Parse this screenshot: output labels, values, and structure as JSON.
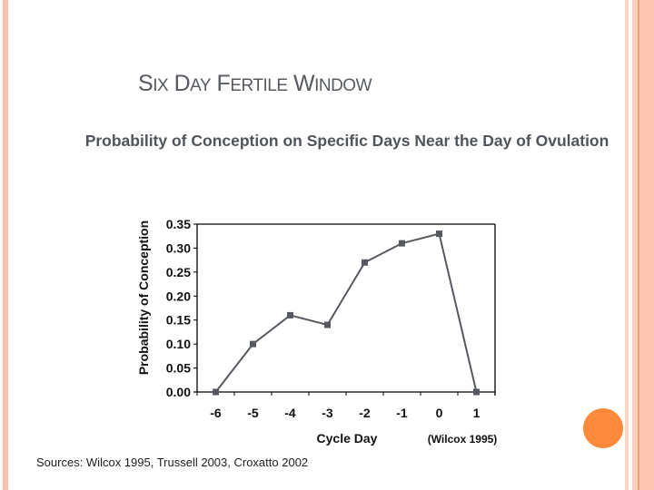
{
  "slide": {
    "title_parts": [
      {
        "cap": "S",
        "rest": "IX"
      },
      {
        "cap": "D",
        "rest": "AY"
      },
      {
        "cap": "F",
        "rest": "ERTILE"
      },
      {
        "cap": "W",
        "rest": "INDOW"
      }
    ],
    "subtitle": "Probability of Conception on Specific Days Near the Day of Ovulation",
    "sources": "Sources: Wilcox 1995, Trussell 2003, Croxatto 2002",
    "citation": "(Wilcox 1995)",
    "colors": {
      "border_left": "#f9c4ac",
      "border_right_light": "#fcd5c4",
      "border_right_dark": "#e8a47c",
      "accent_dot": "#fb8a3c",
      "series_line": "#55595f"
    }
  },
  "chart_data": {
    "type": "line",
    "title": "Probability of Conception on Specific Days Near the Day of Ovulation",
    "xlabel": "Cycle Day",
    "ylabel": "Probability of Conception",
    "categories": [
      "-6",
      "-5",
      "-4",
      "-3",
      "-2",
      "-1",
      "0",
      "1"
    ],
    "series": [
      {
        "name": "Probability of Conception",
        "values": [
          0.0,
          0.1,
          0.16,
          0.14,
          0.27,
          0.31,
          0.33,
          0.0
        ]
      }
    ],
    "yticks": [
      "0.00",
      "0.05",
      "0.10",
      "0.15",
      "0.20",
      "0.25",
      "0.30",
      "0.35"
    ],
    "ylim": [
      0,
      0.35
    ],
    "grid": false,
    "legend": "none",
    "annotation": "(Wilcox 1995)",
    "marker": "square"
  }
}
